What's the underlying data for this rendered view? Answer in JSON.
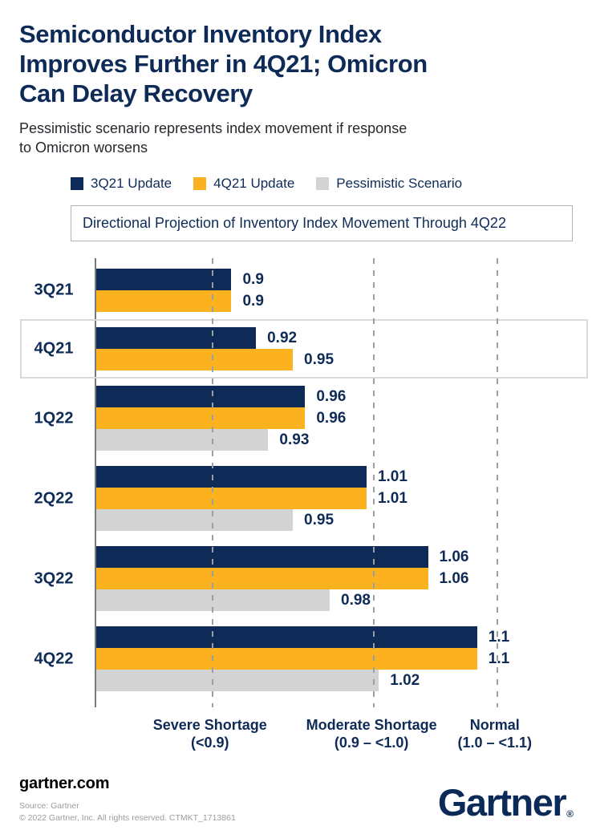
{
  "header": {
    "title_lines": [
      "Semiconductor Inventory Index",
      "Improves Further in 4Q21; Omicron",
      "Can Delay Recovery"
    ],
    "subtitle_lines": [
      "Pessimistic scenario represents index movement if response",
      "to Omicron worsens"
    ]
  },
  "legend": [
    {
      "label": "3Q21 Update",
      "color": "#0e2b57"
    },
    {
      "label": "4Q21 Update",
      "color": "#fcb11e"
    },
    {
      "label": "Pessimistic Scenario",
      "color": "#d3d3d3"
    }
  ],
  "callout": "Directional Projection of Inventory Index Movement Through 4Q22",
  "chart_data": {
    "type": "bar",
    "orientation": "horizontal",
    "categories": [
      "3Q21",
      "4Q21",
      "1Q22",
      "2Q22",
      "3Q22",
      "4Q22"
    ],
    "series": [
      {
        "name": "3Q21 Update",
        "color": "#0e2b57",
        "values": [
          0.9,
          0.92,
          0.96,
          1.01,
          1.06,
          1.1
        ],
        "labels": [
          "0.9",
          "0.92",
          "0.96",
          "1.01",
          "1.06",
          "1.1"
        ]
      },
      {
        "name": "4Q21 Update",
        "color": "#fcb11e",
        "values": [
          0.9,
          0.95,
          0.96,
          1.01,
          1.06,
          1.1
        ],
        "labels": [
          "0.9",
          "0.95",
          "0.96",
          "1.01",
          "1.06",
          "1.1"
        ]
      },
      {
        "name": "Pessimistic Scenario",
        "color": "#d3d3d3",
        "values": [
          null,
          null,
          0.93,
          0.95,
          0.98,
          1.02
        ],
        "labels": [
          null,
          null,
          "0.93",
          "0.95",
          "0.98",
          "1.02"
        ]
      }
    ],
    "highlighted_category": "4Q21",
    "value_axis": {
      "min": 0.79,
      "max": 1.17
    },
    "gridlines_pct": [
      24.7,
      59.3,
      85.7
    ],
    "gridline_style": "dashed",
    "zones": [
      {
        "label": "Severe Shortage",
        "range": "(<0.9)"
      },
      {
        "label": "Moderate Shortage",
        "range": "(0.9 – <1.0)"
      },
      {
        "label": "Normal",
        "range": "(1.0 – <1.1)"
      }
    ]
  },
  "footer": {
    "site": "gartner.com",
    "source": "Source: Gartner",
    "copyright": "© 2022 Gartner, Inc. All rights reserved. CTMKT_1713861",
    "logo": "Gartner",
    "logo_mark": "®"
  }
}
